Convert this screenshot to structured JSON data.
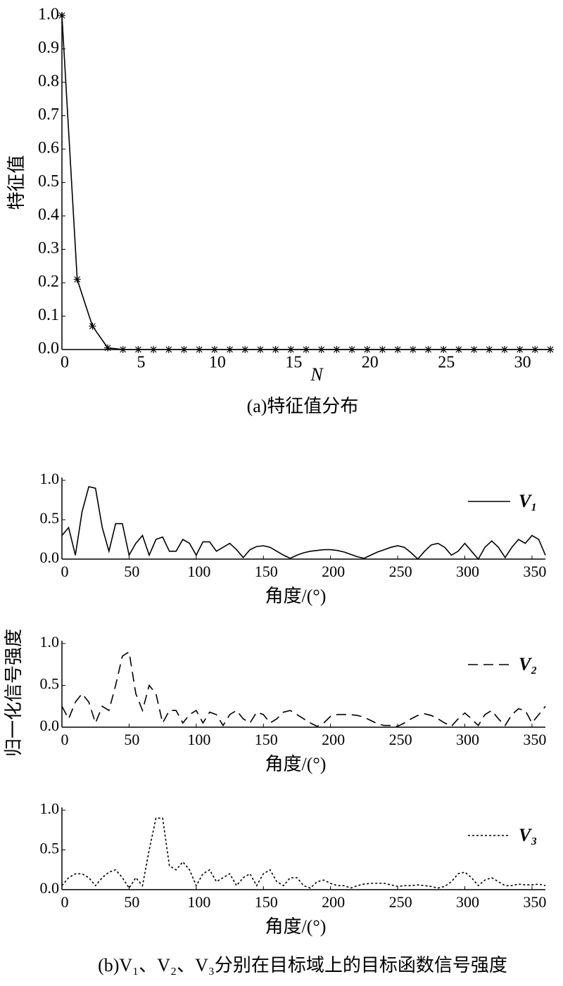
{
  "chart_data": [
    {
      "type": "line",
      "ylabel": "特征值",
      "xlabel": "N",
      "caption": "(a)特征值分布",
      "x": [
        0,
        1,
        2,
        3,
        4,
        5,
        6,
        7,
        8,
        9,
        10,
        11,
        12,
        13,
        14,
        15,
        16,
        17,
        18,
        19,
        20,
        21,
        22,
        23,
        24,
        25,
        26,
        27,
        28,
        29,
        30,
        31,
        32
      ],
      "series": [
        {
          "color": "#000000",
          "values": [
            1.0,
            0.21,
            0.07,
            0.005,
            0,
            0,
            0,
            0,
            0,
            0,
            0,
            0,
            0,
            0,
            0,
            0,
            0,
            0,
            0,
            0,
            0,
            0,
            0,
            0,
            0,
            0,
            0,
            0,
            0,
            0,
            0,
            0,
            0
          ]
        }
      ],
      "markers": true,
      "xlim": [
        0,
        32
      ],
      "xticks": [
        0,
        5,
        10,
        15,
        20,
        25,
        30
      ],
      "ylim": [
        0,
        1
      ],
      "yticks": [
        {
          "value": 0,
          "label": "0.0"
        },
        0.1,
        0.2,
        0.3,
        0.4,
        0.5,
        0.6,
        0.7,
        0.8,
        0.9,
        {
          "value": 1,
          "label": "1.0"
        }
      ]
    },
    {
      "type": "line",
      "xlabel": "角度/(°)",
      "x": [
        0,
        5,
        10,
        15,
        20,
        25,
        30,
        35,
        40,
        45,
        50,
        55,
        60,
        65,
        70,
        75,
        80,
        85,
        90,
        95,
        100,
        105,
        110,
        115,
        120,
        125,
        130,
        135,
        140,
        145,
        150,
        155,
        160,
        165,
        170,
        175,
        180,
        185,
        190,
        195,
        200,
        205,
        210,
        215,
        220,
        225,
        230,
        235,
        240,
        245,
        250,
        255,
        260,
        265,
        270,
        275,
        280,
        285,
        290,
        295,
        300,
        305,
        310,
        315,
        320,
        325,
        330,
        335,
        340,
        345,
        350,
        355,
        360
      ],
      "series": [
        {
          "name": "V₁",
          "color": "#000000",
          "dash": "solid",
          "values": [
            0.3,
            0.4,
            0.05,
            0.6,
            0.92,
            0.9,
            0.4,
            0.1,
            0.45,
            0.45,
            0.05,
            0.2,
            0.3,
            0.05,
            0.25,
            0.28,
            0.1,
            0.1,
            0.25,
            0.2,
            0.05,
            0.22,
            0.22,
            0.1,
            0.15,
            0.2,
            0.12,
            0.02,
            0.12,
            0.16,
            0.17,
            0.15,
            0.1,
            0.05,
            0.01,
            0.05,
            0.08,
            0.1,
            0.11,
            0.12,
            0.12,
            0.11,
            0.09,
            0.06,
            0.03,
            0.01,
            0.05,
            0.09,
            0.12,
            0.15,
            0.17,
            0.15,
            0.08,
            0.0,
            0.1,
            0.18,
            0.2,
            0.15,
            0.05,
            0.1,
            0.2,
            0.1,
            0.0,
            0.15,
            0.23,
            0.15,
            0.02,
            0.15,
            0.25,
            0.2,
            0.3,
            0.25,
            0.05
          ]
        }
      ],
      "xlim": [
        0,
        360
      ],
      "xticks": [
        0,
        50,
        100,
        150,
        200,
        250,
        300,
        350
      ],
      "ylim": [
        0,
        1
      ],
      "yticks": [
        {
          "value": 0,
          "label": "0.0"
        },
        0.5,
        {
          "value": 1,
          "label": "1.0"
        }
      ]
    },
    {
      "type": "line",
      "xlabel": "角度/(°)",
      "x": [
        0,
        5,
        10,
        15,
        20,
        25,
        30,
        35,
        40,
        45,
        50,
        55,
        60,
        65,
        70,
        75,
        80,
        85,
        90,
        95,
        100,
        105,
        110,
        115,
        120,
        125,
        130,
        135,
        140,
        145,
        150,
        155,
        160,
        165,
        170,
        175,
        180,
        185,
        190,
        195,
        200,
        205,
        210,
        215,
        220,
        225,
        230,
        235,
        240,
        245,
        250,
        255,
        260,
        265,
        270,
        275,
        280,
        285,
        290,
        295,
        300,
        305,
        310,
        315,
        320,
        325,
        330,
        335,
        340,
        345,
        350,
        355,
        360
      ],
      "series": [
        {
          "name": "V₂",
          "color": "#000000",
          "dash": "dashed",
          "values": [
            0.25,
            0.1,
            0.3,
            0.4,
            0.3,
            0.05,
            0.25,
            0.2,
            0.5,
            0.85,
            0.9,
            0.4,
            0.2,
            0.5,
            0.4,
            0.05,
            0.2,
            0.2,
            0.05,
            0.15,
            0.2,
            0.05,
            0.18,
            0.15,
            0.02,
            0.15,
            0.2,
            0.1,
            0.05,
            0.18,
            0.15,
            0.05,
            0.1,
            0.18,
            0.2,
            0.15,
            0.1,
            0.05,
            0.01,
            0.05,
            0.13,
            0.15,
            0.15,
            0.15,
            0.14,
            0.12,
            0.08,
            0.04,
            0.02,
            0.02,
            0.01,
            0.05,
            0.1,
            0.14,
            0.16,
            0.14,
            0.1,
            0.05,
            0.01,
            0.1,
            0.17,
            0.1,
            0.02,
            0.15,
            0.2,
            0.1,
            0.02,
            0.15,
            0.22,
            0.2,
            0.05,
            0.15,
            0.25
          ]
        }
      ],
      "xlim": [
        0,
        360
      ],
      "xticks": [
        0,
        50,
        100,
        150,
        200,
        250,
        300,
        350
      ],
      "ylim": [
        0,
        1
      ],
      "yticks": [
        {
          "value": 0,
          "label": "0.0"
        },
        0.5,
        {
          "value": 1,
          "label": "1.0"
        }
      ]
    },
    {
      "type": "line",
      "xlabel": "角度/(°)",
      "x": [
        0,
        5,
        10,
        15,
        20,
        25,
        30,
        35,
        40,
        45,
        50,
        55,
        60,
        65,
        70,
        75,
        80,
        85,
        90,
        95,
        100,
        105,
        110,
        115,
        120,
        125,
        130,
        135,
        140,
        145,
        150,
        155,
        160,
        165,
        170,
        175,
        180,
        185,
        190,
        195,
        200,
        205,
        210,
        215,
        220,
        225,
        230,
        235,
        240,
        245,
        250,
        255,
        260,
        265,
        270,
        275,
        280,
        285,
        290,
        295,
        300,
        305,
        310,
        315,
        320,
        325,
        330,
        335,
        340,
        345,
        350,
        355,
        360
      ],
      "series": [
        {
          "name": "V₃",
          "color": "#000000",
          "dash": "dotted",
          "values": [
            0.05,
            0.15,
            0.2,
            0.2,
            0.15,
            0.05,
            0.15,
            0.22,
            0.25,
            0.15,
            0.02,
            0.15,
            0.05,
            0.5,
            0.9,
            0.9,
            0.3,
            0.25,
            0.35,
            0.25,
            0.05,
            0.2,
            0.25,
            0.1,
            0.15,
            0.2,
            0.05,
            0.15,
            0.2,
            0.05,
            0.2,
            0.25,
            0.1,
            0.05,
            0.15,
            0.15,
            0.05,
            0.02,
            0.1,
            0.12,
            0.08,
            0.05,
            0.05,
            0.02,
            0.05,
            0.07,
            0.08,
            0.08,
            0.08,
            0.06,
            0.04,
            0.05,
            0.05,
            0.06,
            0.05,
            0.04,
            0.02,
            0.04,
            0.1,
            0.2,
            0.22,
            0.15,
            0.05,
            0.12,
            0.15,
            0.1,
            0.05,
            0.05,
            0.07,
            0.06,
            0.06,
            0.07,
            0.05
          ]
        }
      ],
      "xlim": [
        0,
        360
      ],
      "xticks": [
        0,
        50,
        100,
        150,
        200,
        250,
        300,
        350
      ],
      "ylim": [
        0,
        1
      ],
      "yticks": [
        {
          "value": 0,
          "label": "0.0"
        },
        0.5,
        {
          "value": 1,
          "label": "1.0"
        }
      ]
    }
  ],
  "figure_b": {
    "ylabel": "归一化信号强度",
    "caption": "(b)V₁、V₂、V₃分别在目标域上的目标函数信号强度"
  }
}
